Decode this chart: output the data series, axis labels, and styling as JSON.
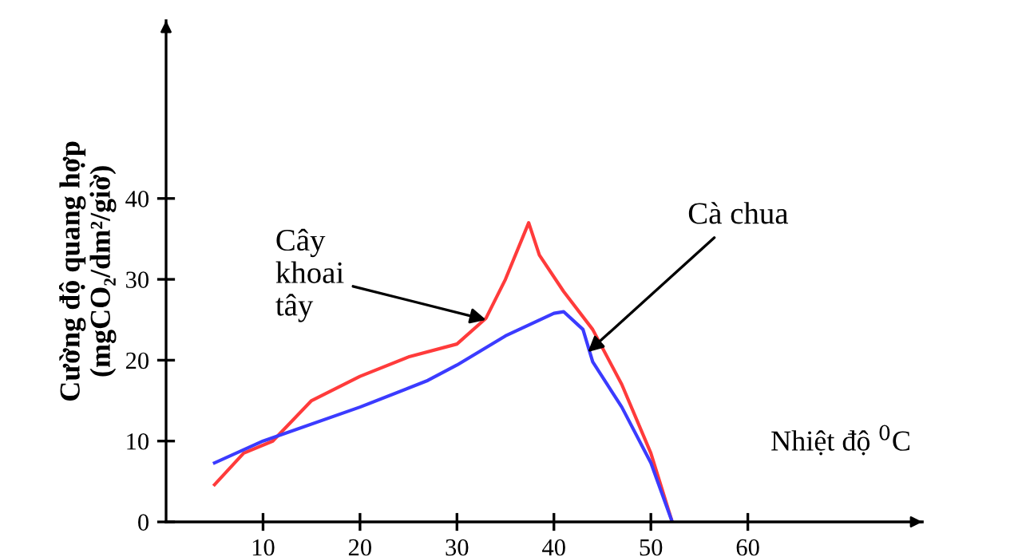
{
  "chart_data": {
    "type": "line",
    "xlabel": "Nhiệt độ $^{0}$C",
    "ylabel": "Cường độ quang hợp\n(mgCO₂/dm²/giờ)",
    "xlim": [
      0,
      78
    ],
    "ylim": [
      0,
      62
    ],
    "xticks": [
      10,
      20,
      30,
      40,
      50,
      60
    ],
    "yticks": [
      0,
      10,
      20,
      30,
      40
    ],
    "grid": false,
    "legend": false,
    "marker": "none",
    "line_style": "solid",
    "series": [
      {
        "color": "#ff3b3b",
        "x": [
          5,
          8,
          11,
          15,
          20,
          25,
          30,
          33,
          35,
          37.4,
          38.5,
          41,
          44,
          47,
          50,
          52.2
        ],
        "values": [
          4.6,
          8.5,
          10,
          15,
          18,
          20.4,
          22,
          25.2,
          30,
          37,
          33,
          28.5,
          23.8,
          17,
          8.5,
          0
        ]
      },
      {
        "color": "#3b3bff",
        "x": [
          5,
          10,
          20,
          27,
          30,
          35,
          40,
          41,
          43,
          44,
          47,
          50,
          52.2
        ],
        "values": [
          7.3,
          10,
          14.2,
          17.5,
          19.4,
          23,
          25.8,
          26,
          23.8,
          19.8,
          14.2,
          7.3,
          0
        ]
      }
    ],
    "annotations": [
      {
        "text": "Cây khoai tây",
        "x": 33,
        "y": 25
      },
      {
        "text": "Cà chua",
        "x": 43.5,
        "y": 21
      }
    ]
  }
}
